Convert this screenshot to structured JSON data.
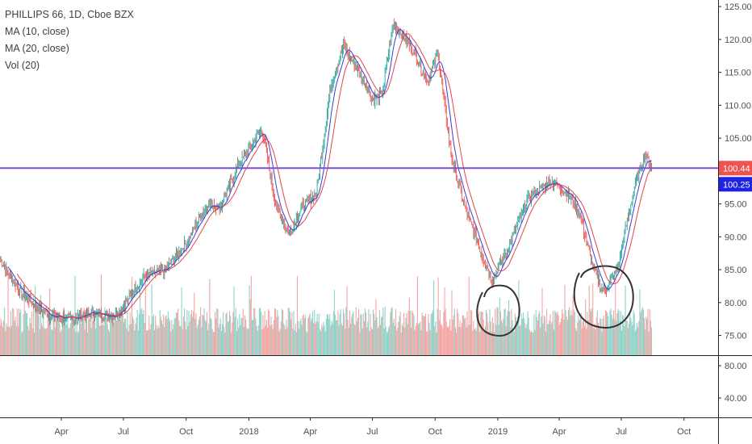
{
  "legend": {
    "symbol": "PHILLIPS 66, 1D, Cboe BZX",
    "ma10": "MA (10, close)",
    "ma20": "MA (20, close)",
    "vol": "Vol (20)"
  },
  "colors": {
    "up": "#26a69a",
    "down": "#ef5350",
    "vol_up": "#8fd3c9",
    "vol_down": "#f4a6a4",
    "ma10": "#3b3bd6",
    "ma20": "#e0454d",
    "hline": "#7b4fd8",
    "price_badge": "#ef5350",
    "ma_badge": "#1e22e6"
  },
  "chart_data": {
    "type": "line",
    "title": "",
    "price_axis": {
      "min": 72,
      "max": 126,
      "ticks": [
        "125.00",
        "120.00",
        "115.00",
        "110.00",
        "105.00",
        "100.00",
        "95.00",
        "90.00",
        "85.00",
        "80.00",
        "75.00"
      ]
    },
    "lower_pane_axis": {
      "ticks": [
        "80.00",
        "40.00"
      ]
    },
    "x_ticks": [
      "Apr",
      "Jul",
      "Oct",
      "2018",
      "Apr",
      "Jul",
      "Oct",
      "2019",
      "Apr",
      "Jul",
      "Oct"
    ],
    "close_points": [
      [
        "2017-01-01",
        86.5
      ],
      [
        "2017-02-01",
        81.5
      ],
      [
        "2017-03-15",
        78.0
      ],
      [
        "2017-04-15",
        77.5
      ],
      [
        "2017-05-15",
        78.5
      ],
      [
        "2017-06-15",
        78.0
      ],
      [
        "2017-07-01",
        79.5
      ],
      [
        "2017-08-01",
        84.0
      ],
      [
        "2017-09-01",
        85.0
      ],
      [
        "2017-10-01",
        89.0
      ],
      [
        "2017-11-01",
        95.0
      ],
      [
        "2017-11-20",
        94.5
      ],
      [
        "2017-12-15",
        100.5
      ],
      [
        "2018-01-20",
        106.5
      ],
      [
        "2018-02-10",
        94.5
      ],
      [
        "2018-03-01",
        90.5
      ],
      [
        "2018-03-20",
        94.5
      ],
      [
        "2018-04-10",
        96.5
      ],
      [
        "2018-05-01",
        113.0
      ],
      [
        "2018-05-20",
        119.0
      ],
      [
        "2018-06-15",
        114.5
      ],
      [
        "2018-07-01",
        111.0
      ],
      [
        "2018-07-15",
        111.5
      ],
      [
        "2018-08-01",
        122.5
      ],
      [
        "2018-09-01",
        118.0
      ],
      [
        "2018-09-20",
        113.5
      ],
      [
        "2018-10-05",
        118.0
      ],
      [
        "2018-10-25",
        102.0
      ],
      [
        "2018-11-15",
        94.0
      ],
      [
        "2018-12-10",
        87.0
      ],
      [
        "2018-12-24",
        83.5
      ],
      [
        "2019-01-15",
        88.0
      ],
      [
        "2019-02-15",
        96.0
      ],
      [
        "2019-03-20",
        98.5
      ],
      [
        "2019-04-15",
        96.5
      ],
      [
        "2019-05-01",
        93.5
      ],
      [
        "2019-05-20",
        85.5
      ],
      [
        "2019-06-05",
        81.5
      ],
      [
        "2019-06-25",
        85.0
      ],
      [
        "2019-07-20",
        97.5
      ],
      [
        "2019-08-05",
        102.5
      ],
      [
        "2019-08-15",
        100.44
      ]
    ],
    "horizontal_line": 100.44,
    "last_price": "100.44",
    "ma_value": "100.25"
  }
}
